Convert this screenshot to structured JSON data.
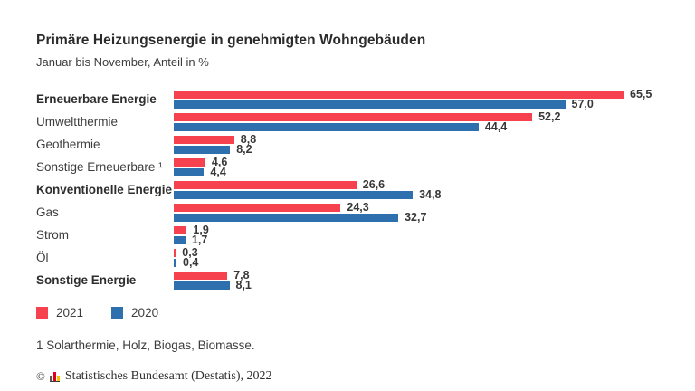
{
  "header": {
    "title": "Primäre Heizungsenergie in genehmigten Wohngebäuden",
    "subtitle": "Januar bis November, Anteil in %"
  },
  "chart_data": {
    "type": "bar",
    "orientation": "horizontal",
    "title": "Primäre Heizungsenergie in genehmigten Wohngebäuden",
    "subtitle": "Januar bis November, Anteil in %",
    "unit": "Anteil in %",
    "categories": [
      "Erneuerbare Energie",
      "Umweltthermie",
      "Geothermie",
      "Sonstige Erneuerbare ¹",
      "Konventionelle Energie",
      "Gas",
      "Strom",
      "Öl",
      "Sonstige Energie"
    ],
    "bold_categories": [
      true,
      false,
      false,
      false,
      true,
      false,
      false,
      false,
      true
    ],
    "series": [
      {
        "name": "2021",
        "color": "#f5424e",
        "values": [
          65.5,
          52.2,
          8.8,
          4.6,
          26.6,
          24.3,
          1.9,
          0.3,
          7.8
        ],
        "labels": [
          "65,5",
          "52,2",
          "8,8",
          "4,6",
          "26,6",
          "24,3",
          "1,9",
          "0,3",
          "7,8"
        ]
      },
      {
        "name": "2020",
        "color": "#2e6fae",
        "values": [
          57.0,
          44.4,
          8.2,
          4.4,
          34.8,
          32.7,
          1.7,
          0.4,
          8.1
        ],
        "labels": [
          "57,0",
          "44,4",
          "8,2",
          "4,4",
          "34,8",
          "32,7",
          "1,7",
          "0,4",
          "8,1"
        ]
      }
    ],
    "xlim": [
      0,
      65.5
    ],
    "grid": false,
    "value_labels_shown": true,
    "legend_position": "bottom-left"
  },
  "legend": {
    "items": [
      {
        "label": "2021",
        "color": "#f5424e"
      },
      {
        "label": "2020",
        "color": "#2e6fae"
      }
    ]
  },
  "footnote": "1 Solarthermie, Holz, Biogas, Biomasse.",
  "source": {
    "copyright": "©",
    "text": "Statistisches Bundesamt (Destatis), 2022"
  }
}
